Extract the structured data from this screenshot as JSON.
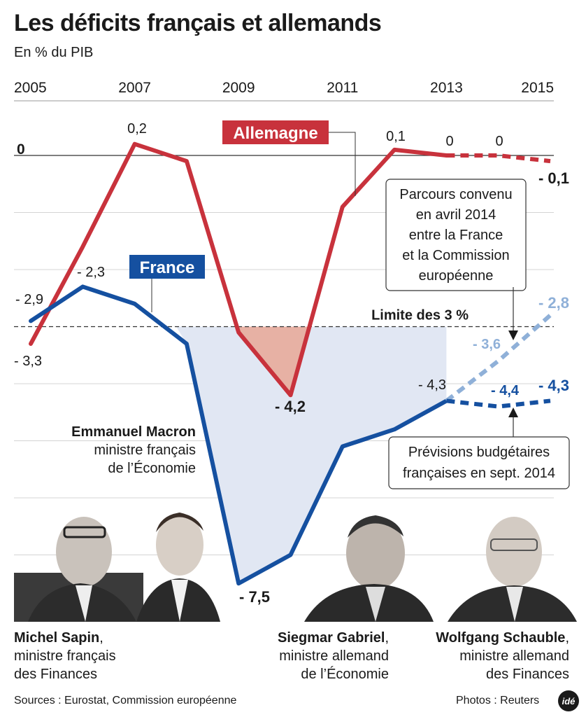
{
  "header": {
    "title": "Les déficits français et allemands",
    "subtitle": "En % du PIB"
  },
  "chart_data": {
    "type": "line",
    "title": "Les déficits français et allemands",
    "subtitle": "En % du PIB",
    "x_ticks": [
      "2005",
      "2007",
      "2009",
      "2011",
      "2013",
      "2015"
    ],
    "zero_label": "0",
    "ylim": [
      -8,
      0.6
    ],
    "grid": true,
    "limit_line": {
      "value": -3,
      "label": "Limite des 3 %"
    },
    "series": [
      {
        "name": "Allemagne",
        "color": "#c8323c",
        "x": [
          2005,
          2006,
          2007,
          2008,
          2009,
          2010,
          2011,
          2012,
          2013
        ],
        "values": [
          -3.3,
          -1.6,
          0.2,
          -0.1,
          -3.1,
          -4.2,
          -0.9,
          0.1,
          0.0
        ],
        "forecast": {
          "x": [
            2013,
            2014,
            2015
          ],
          "values": [
            0.0,
            0.0,
            -0.1
          ],
          "color": "#c8323c"
        },
        "labels": {
          "2005": "- 3,3",
          "2007": "0,2",
          "2010": "- 4,2",
          "2012": "0,1",
          "2013": "0",
          "2014": "0",
          "2015": "- 0,1"
        }
      },
      {
        "name": "France",
        "color": "#1550a0",
        "x": [
          2005,
          2006,
          2007,
          2008,
          2009,
          2010,
          2011,
          2012,
          2013
        ],
        "values": [
          -2.9,
          -2.3,
          -2.6,
          -3.3,
          -7.5,
          -7.0,
          -5.1,
          -4.8,
          -4.3
        ],
        "forecast_commission": {
          "x": [
            2013,
            2014,
            2015
          ],
          "values": [
            -4.3,
            -3.6,
            -2.8
          ],
          "color": "#8fb0d8"
        },
        "forecast_budget": {
          "x": [
            2013,
            2014,
            2015
          ],
          "values": [
            -4.3,
            -4.4,
            -4.3
          ],
          "color": "#1550a0"
        },
        "labels": {
          "2005": "- 2,9",
          "2006": "- 2,3",
          "2009": "- 7,5",
          "2013": "- 4,3",
          "c2014": "- 3,6",
          "c2015": "- 2,8",
          "b2014": "- 4,4",
          "b2015": "- 4,3"
        }
      }
    ],
    "annotations": {
      "commission": "Parcours convenu en avril 2014 entre la France et la Commission européenne",
      "budget": "Prévisions budgétaires françaises en sept. 2014"
    }
  },
  "annotations_lines": {
    "commission": [
      "Parcours convenu",
      "en avril 2014",
      "entre la France",
      "et la Commission",
      "européenne"
    ],
    "budget": [
      "Prévisions budgétaires",
      "françaises en sept. 2014"
    ]
  },
  "people": [
    {
      "name": "Emmanuel Macron",
      "role1": "ministre français",
      "role2": "de l’Économie"
    },
    {
      "name": "Michel Sapin",
      "suffix": ",",
      "role1": "ministre français",
      "role2": "des Finances"
    },
    {
      "name": "Siegmar Gabriel",
      "suffix": ",",
      "role1": "ministre allemand",
      "role2": "de l’Économie"
    },
    {
      "name": "Wolfgang Schauble",
      "suffix": ",",
      "role1": "ministre allemand",
      "role2": "des Finances"
    }
  ],
  "footer": {
    "sources": "Sources : Eurostat, Commission européenne",
    "credits": "Photos : Reuters",
    "logo": "idé"
  }
}
